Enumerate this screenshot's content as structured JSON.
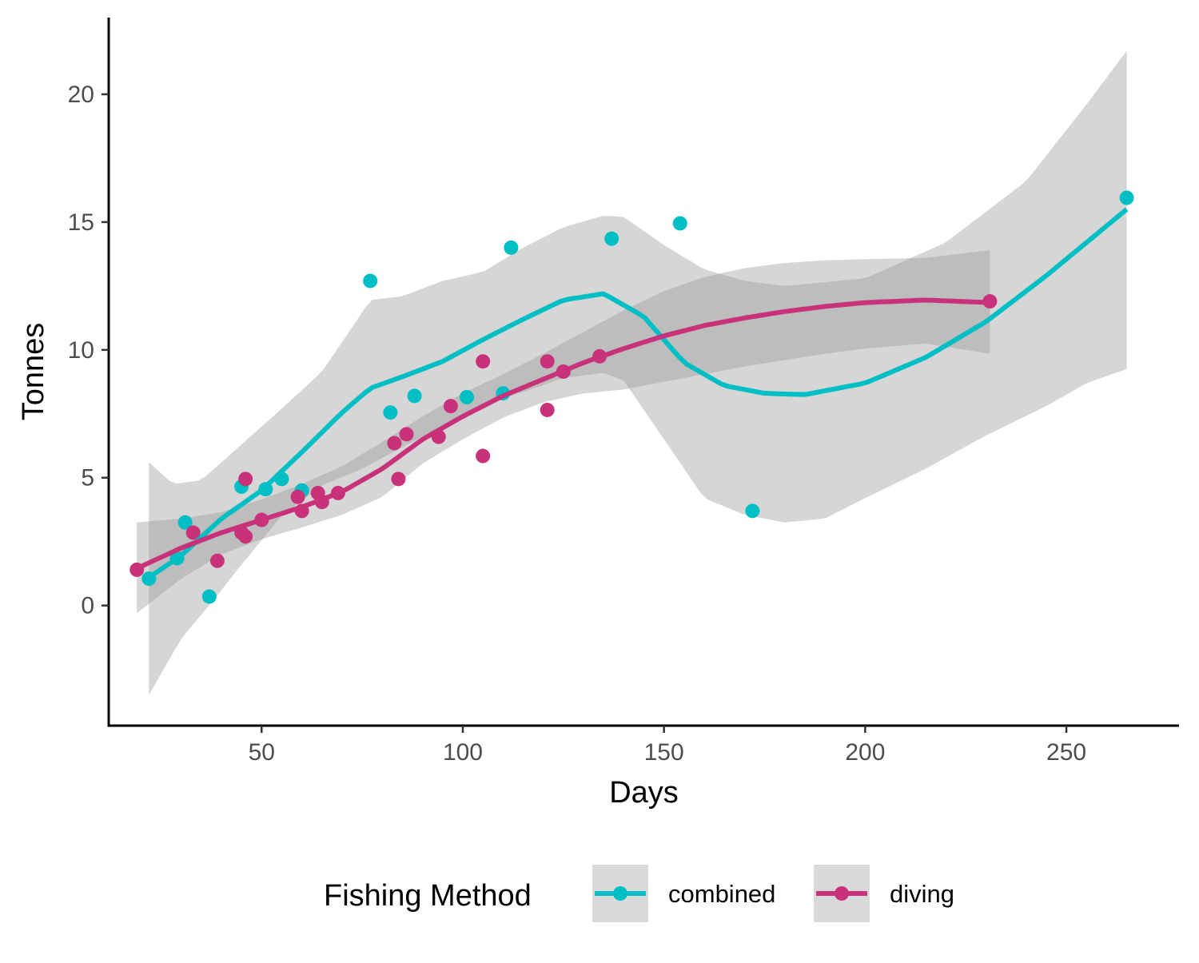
{
  "chart_data": {
    "type": "scatter",
    "xlabel": "Days",
    "ylabel": "Tonnes",
    "xlim": [
      12,
      278
    ],
    "ylim": [
      -4.7,
      23
    ],
    "xticks": [
      50,
      100,
      150,
      200,
      250
    ],
    "yticks": [
      0,
      5,
      10,
      15,
      20
    ],
    "grid": false,
    "legend": {
      "title": "Fishing Method",
      "position": "bottom"
    },
    "series": [
      {
        "name": "combined",
        "color": "#00BFC4",
        "points": [
          [
            22,
            1.05
          ],
          [
            29,
            1.85
          ],
          [
            31,
            3.25
          ],
          [
            37,
            0.35
          ],
          [
            45,
            4.65
          ],
          [
            51,
            4.55
          ],
          [
            55,
            4.95
          ],
          [
            60,
            4.5
          ],
          [
            77,
            12.7
          ],
          [
            82,
            7.55
          ],
          [
            88,
            8.2
          ],
          [
            101,
            8.15
          ],
          [
            110,
            8.3
          ],
          [
            112,
            14.0
          ],
          [
            137,
            14.35
          ],
          [
            154,
            14.95
          ],
          [
            172,
            3.7
          ],
          [
            265,
            15.95
          ]
        ],
        "smooth": [
          [
            22,
            1.1
          ],
          [
            30,
            1.95
          ],
          [
            40,
            3.4
          ],
          [
            50,
            4.5
          ],
          [
            60,
            6.0
          ],
          [
            70,
            7.55
          ],
          [
            77,
            8.5
          ],
          [
            85,
            8.95
          ],
          [
            95,
            9.55
          ],
          [
            105,
            10.4
          ],
          [
            115,
            11.2
          ],
          [
            125,
            11.95
          ],
          [
            135,
            12.2
          ],
          [
            145,
            11.3
          ],
          [
            155,
            9.5
          ],
          [
            165,
            8.6
          ],
          [
            175,
            8.3
          ],
          [
            185,
            8.25
          ],
          [
            200,
            8.7
          ],
          [
            215,
            9.7
          ],
          [
            230,
            11.1
          ],
          [
            245,
            12.9
          ],
          [
            255,
            14.2
          ],
          [
            265,
            15.5
          ]
        ],
        "band_upper": [
          [
            22,
            5.6
          ],
          [
            28,
            4.75
          ],
          [
            35,
            4.9
          ],
          [
            45,
            6.3
          ],
          [
            55,
            7.7
          ],
          [
            65,
            9.15
          ],
          [
            73,
            11.0
          ],
          [
            77,
            11.95
          ],
          [
            85,
            12.1
          ],
          [
            95,
            12.7
          ],
          [
            105,
            13.05
          ],
          [
            115,
            14.0
          ],
          [
            125,
            14.8
          ],
          [
            135,
            15.25
          ],
          [
            140,
            15.2
          ],
          [
            150,
            14.1
          ],
          [
            160,
            13.15
          ],
          [
            170,
            12.7
          ],
          [
            180,
            12.5
          ],
          [
            200,
            12.8
          ],
          [
            220,
            14.2
          ],
          [
            240,
            16.6
          ],
          [
            255,
            19.6
          ],
          [
            265,
            21.7
          ]
        ],
        "band_lower": [
          [
            22,
            -3.5
          ],
          [
            30,
            -1.3
          ],
          [
            38,
            0.2
          ],
          [
            45,
            1.6
          ],
          [
            55,
            3.5
          ],
          [
            65,
            4.7
          ],
          [
            75,
            5.35
          ],
          [
            85,
            6.2
          ],
          [
            95,
            7.0
          ],
          [
            105,
            7.85
          ],
          [
            115,
            8.35
          ],
          [
            125,
            8.9
          ],
          [
            135,
            9.1
          ],
          [
            140,
            8.8
          ],
          [
            150,
            6.5
          ],
          [
            160,
            4.2
          ],
          [
            170,
            3.55
          ],
          [
            180,
            3.25
          ],
          [
            190,
            3.4
          ],
          [
            200,
            4.2
          ],
          [
            215,
            5.35
          ],
          [
            230,
            6.65
          ],
          [
            245,
            7.8
          ],
          [
            255,
            8.7
          ],
          [
            265,
            9.25
          ]
        ]
      },
      {
        "name": "diving",
        "color": "#C8327A",
        "points": [
          [
            19,
            1.4
          ],
          [
            33,
            2.85
          ],
          [
            39,
            1.75
          ],
          [
            45,
            2.85
          ],
          [
            46,
            2.7
          ],
          [
            46,
            4.95
          ],
          [
            50,
            3.35
          ],
          [
            59,
            4.25
          ],
          [
            60,
            3.7
          ],
          [
            64,
            4.4
          ],
          [
            65,
            4.05
          ],
          [
            69,
            4.4
          ],
          [
            83,
            6.35
          ],
          [
            84,
            4.95
          ],
          [
            86,
            6.7
          ],
          [
            94,
            6.6
          ],
          [
            97,
            7.8
          ],
          [
            105,
            9.55
          ],
          [
            105,
            5.85
          ],
          [
            121,
            9.55
          ],
          [
            121,
            7.65
          ],
          [
            125,
            9.15
          ],
          [
            134,
            9.75
          ],
          [
            231,
            11.9
          ]
        ],
        "smooth": [
          [
            19,
            1.45
          ],
          [
            30,
            2.25
          ],
          [
            40,
            2.85
          ],
          [
            50,
            3.35
          ],
          [
            60,
            3.85
          ],
          [
            70,
            4.45
          ],
          [
            80,
            5.35
          ],
          [
            90,
            6.5
          ],
          [
            100,
            7.4
          ],
          [
            110,
            8.2
          ],
          [
            120,
            8.85
          ],
          [
            130,
            9.5
          ],
          [
            140,
            10.05
          ],
          [
            150,
            10.55
          ],
          [
            160,
            10.95
          ],
          [
            170,
            11.25
          ],
          [
            180,
            11.5
          ],
          [
            190,
            11.7
          ],
          [
            200,
            11.85
          ],
          [
            215,
            11.95
          ],
          [
            231,
            11.85
          ]
        ],
        "band_upper": [
          [
            19,
            3.25
          ],
          [
            30,
            3.4
          ],
          [
            40,
            3.65
          ],
          [
            50,
            4.15
          ],
          [
            60,
            4.75
          ],
          [
            70,
            5.45
          ],
          [
            80,
            6.4
          ],
          [
            90,
            7.4
          ],
          [
            100,
            8.3
          ],
          [
            110,
            9.05
          ],
          [
            120,
            9.85
          ],
          [
            130,
            10.7
          ],
          [
            140,
            11.55
          ],
          [
            150,
            12.3
          ],
          [
            160,
            12.85
          ],
          [
            170,
            13.2
          ],
          [
            180,
            13.4
          ],
          [
            190,
            13.5
          ],
          [
            200,
            13.55
          ],
          [
            215,
            13.6
          ],
          [
            231,
            13.9
          ]
        ],
        "band_lower": [
          [
            19,
            -0.3
          ],
          [
            30,
            1.05
          ],
          [
            40,
            2.0
          ],
          [
            50,
            2.6
          ],
          [
            60,
            3.05
          ],
          [
            70,
            3.55
          ],
          [
            80,
            4.25
          ],
          [
            90,
            5.55
          ],
          [
            100,
            6.5
          ],
          [
            110,
            7.35
          ],
          [
            120,
            7.95
          ],
          [
            130,
            8.3
          ],
          [
            140,
            8.45
          ],
          [
            150,
            8.75
          ],
          [
            160,
            9.05
          ],
          [
            170,
            9.35
          ],
          [
            180,
            9.6
          ],
          [
            190,
            9.85
          ],
          [
            200,
            10.05
          ],
          [
            215,
            10.25
          ],
          [
            231,
            9.85
          ]
        ]
      }
    ]
  }
}
